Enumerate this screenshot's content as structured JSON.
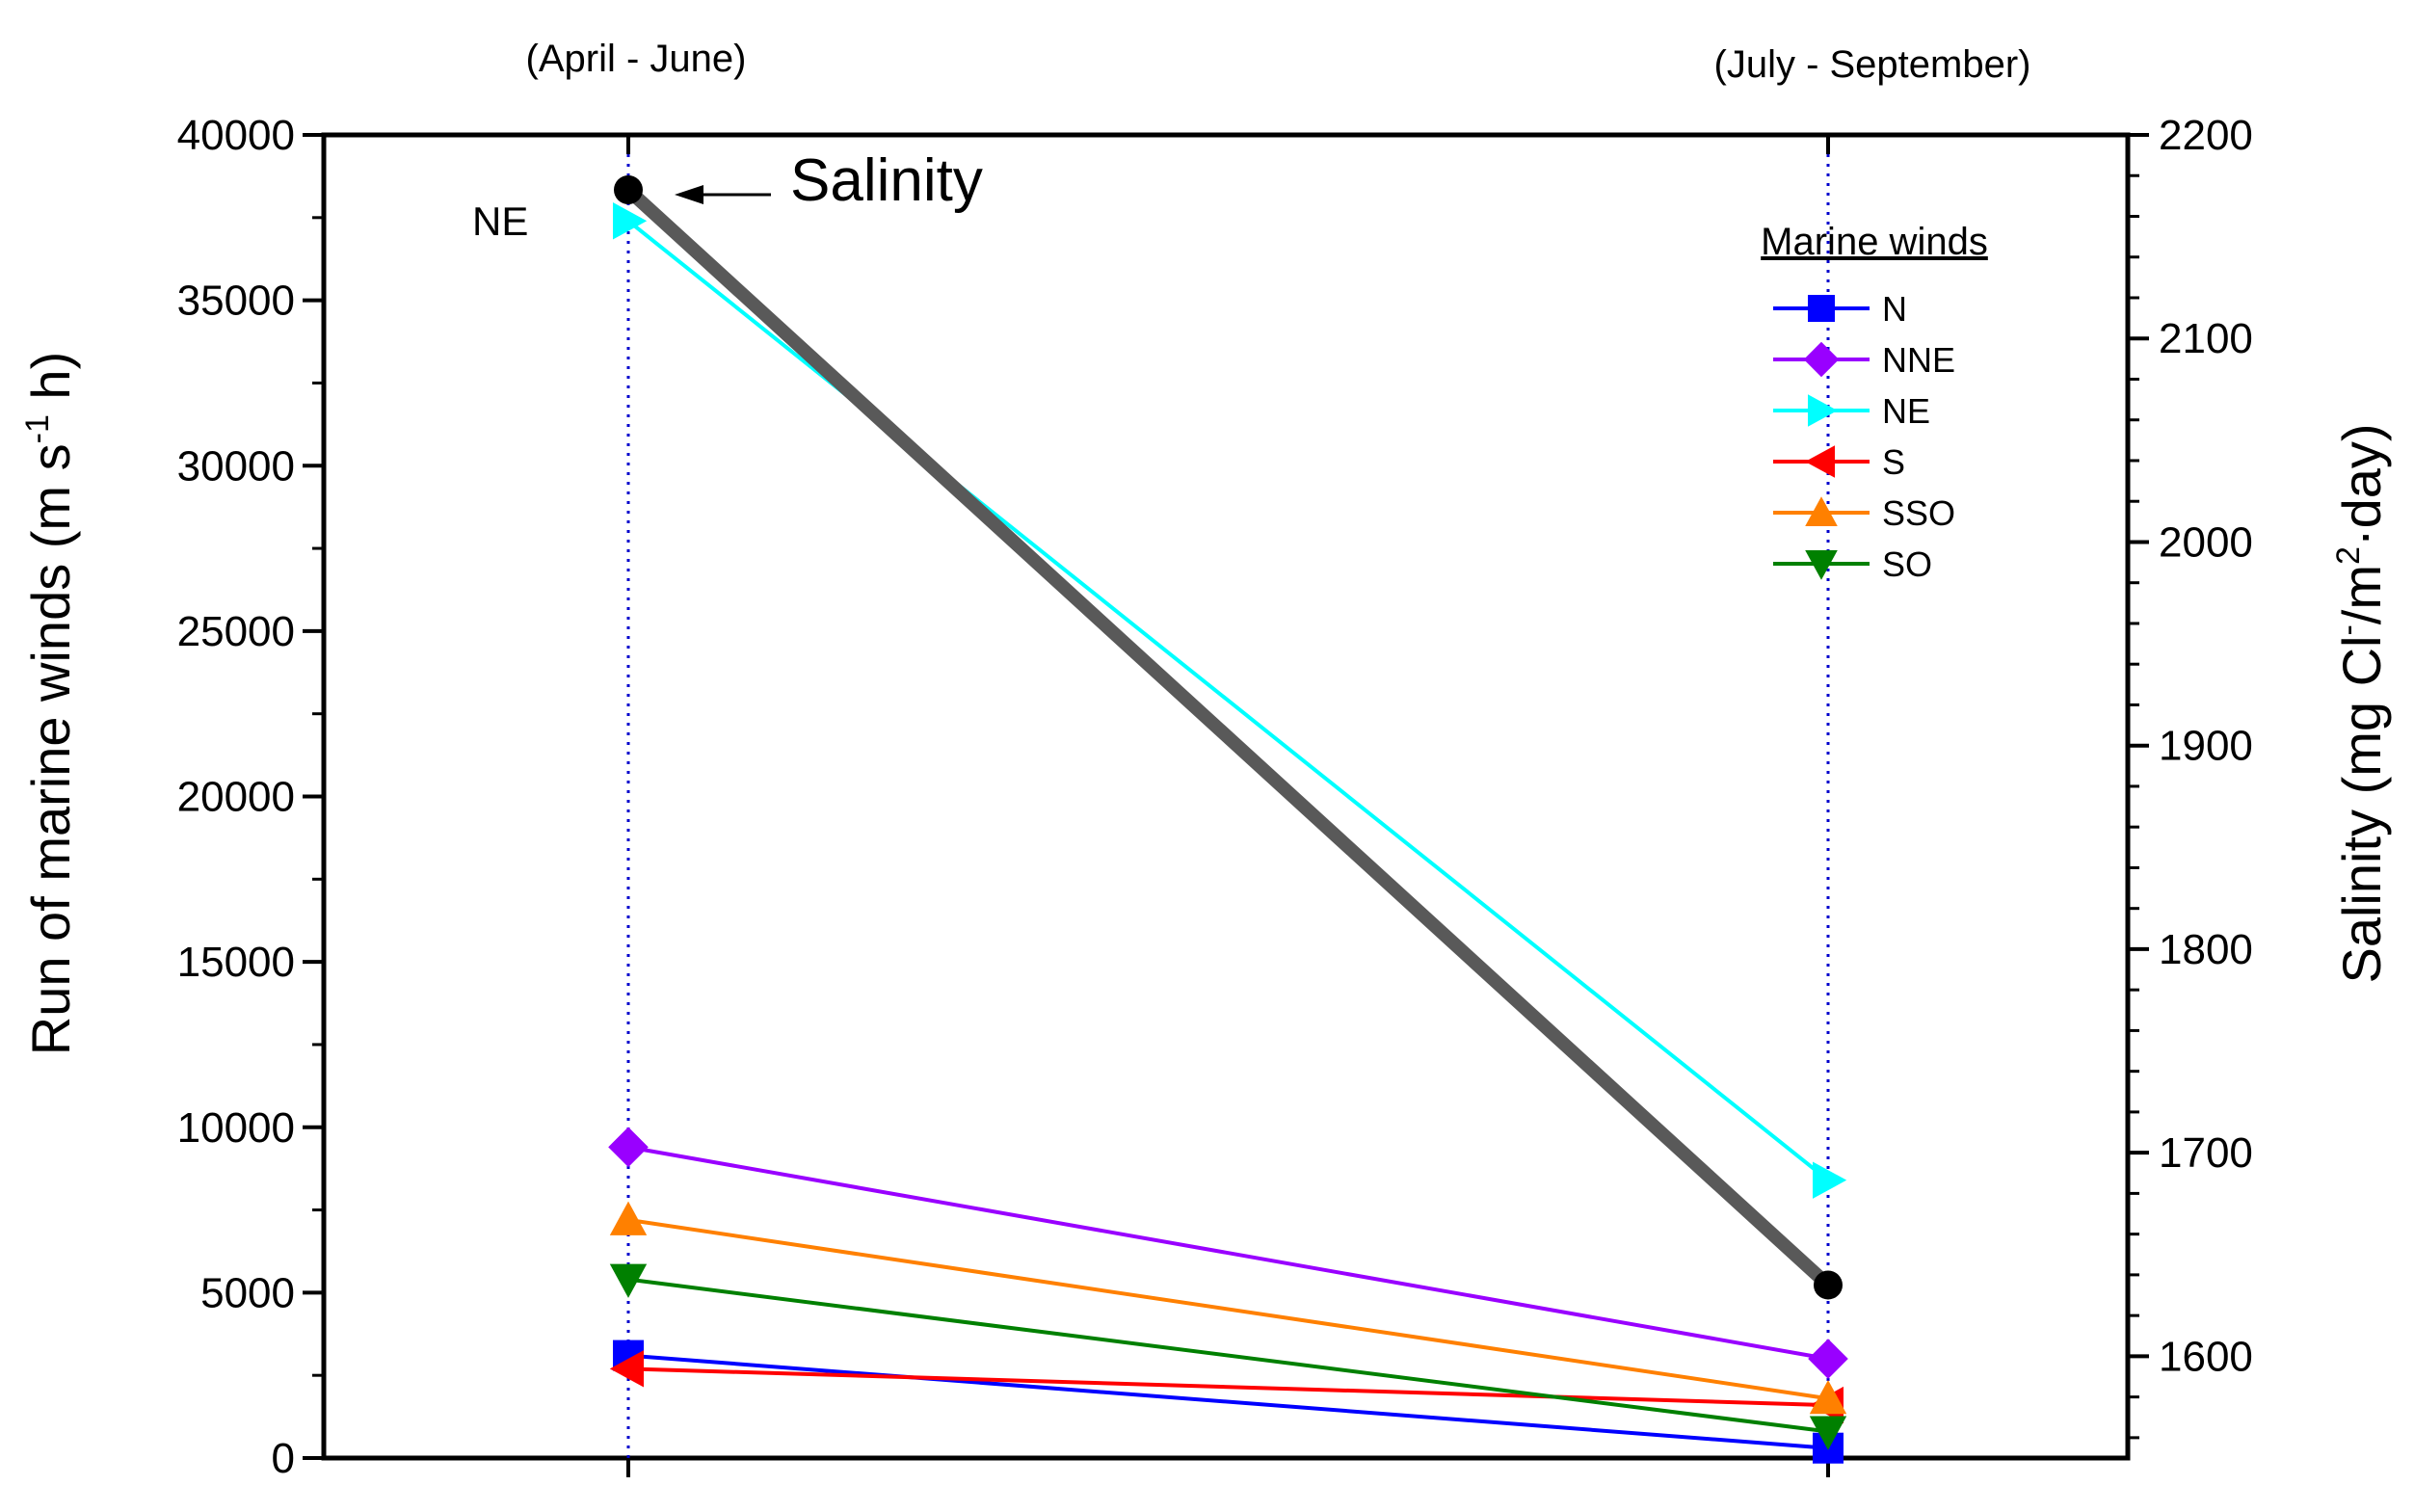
{
  "chart_data": {
    "type": "line",
    "categories": [
      "(April - June)",
      "(July - September)"
    ],
    "ylabel": "Run of marine winds (m s-1 h)",
    "ylabel_parts": {
      "main": "Run of marine winds (m s",
      "sup": "-1",
      "tail": " h)"
    },
    "ylim": [
      0,
      40000
    ],
    "yticks": [
      "0",
      "5000",
      "10000",
      "15000",
      "20000",
      "25000",
      "30000",
      "35000",
      "40000"
    ],
    "y2label": "Salinity (mg Cl-/m2·day)",
    "y2label_parts": {
      "a": "Salinity (mg Cl",
      "sup1": "-",
      "b": "/m",
      "sup2": "2",
      "c": "·day)"
    },
    "y2lim": [
      1550,
      2200
    ],
    "y2ticks": [
      "1600",
      "1700",
      "1800",
      "1900",
      "2000",
      "2100",
      "2200"
    ],
    "legend": {
      "title": "Marine winds",
      "position": "top-right"
    },
    "series": [
      {
        "name": "N",
        "axis": "left",
        "values": [
          3100,
          300
        ],
        "color": "#0000ff",
        "marker": "square"
      },
      {
        "name": "NNE",
        "axis": "left",
        "values": [
          9400,
          3000
        ],
        "color": "#9900ff",
        "marker": "diamond"
      },
      {
        "name": "NE",
        "axis": "left",
        "values": [
          37400,
          8400
        ],
        "color": "#00ffff",
        "marker": "triangle-right"
      },
      {
        "name": "S",
        "axis": "left",
        "values": [
          2700,
          1600
        ],
        "color": "#ff0000",
        "marker": "triangle-left"
      },
      {
        "name": "SSO",
        "axis": "left",
        "values": [
          7200,
          1800
        ],
        "color": "#ff8000",
        "marker": "triangle-up"
      },
      {
        "name": "SO",
        "axis": "left",
        "values": [
          5400,
          800
        ],
        "color": "#008000",
        "marker": "triangle-down"
      },
      {
        "name": "Salinity",
        "axis": "right",
        "values": [
          2173,
          1635
        ],
        "color": "#595959",
        "marker": "circle"
      }
    ],
    "annotations": [
      {
        "text": "Salinity"
      },
      {
        "text": "NE"
      }
    ],
    "grid": false
  }
}
